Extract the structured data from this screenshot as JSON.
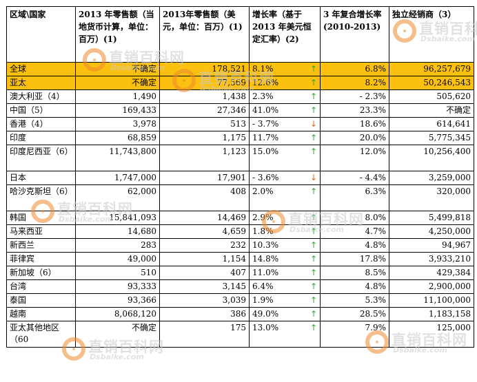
{
  "header": {
    "c1": "区域\\国家",
    "c2": "2013 年零售额（当地货币计算，单位：百万）(1)",
    "c3": "2013年零售额（美元，单位：百万）(1)",
    "c4": "增长率（基于 2013 年美元恒定汇率）(2)",
    "c5": "3 年复合增长率 (2010-2013)",
    "c6": "独立经销商（3）"
  },
  "rows": [
    {
      "name": "全球",
      "local": "不确定",
      "usd": "178,521",
      "rate": "8.1%",
      "trend": "up",
      "cagr": "6.8%",
      "dist": "96,257,679",
      "highlight": true
    },
    {
      "name": "亚太",
      "local": "不确定",
      "usd": "77,569",
      "rate": "12.6%",
      "trend": "up",
      "cagr": "8.2%",
      "dist": "50,246,543",
      "highlight": true
    },
    {
      "name": "澳大利亚（4）",
      "local": "1,490",
      "usd": "1,438",
      "rate": "2.3%",
      "trend": "up",
      "cagr": "- 2.3%",
      "dist": "505,620"
    },
    {
      "name": "中国（5）",
      "local": "169,433",
      "usd": "27,346",
      "rate": "41.0%",
      "trend": "up",
      "cagr": "23.3%",
      "dist": "不确定"
    },
    {
      "name": "香港（4）",
      "local": "3,978",
      "usd": "513",
      "rate": "- 3.7%",
      "trend": "down",
      "cagr": "18.6%",
      "dist": "614,641"
    },
    {
      "name": "印度",
      "local": "68,859",
      "usd": "1,175",
      "rate": "11.7%",
      "trend": "up",
      "cagr": "20.0%",
      "dist": "5,775,345"
    },
    {
      "name": "印度尼西亚（6）",
      "local": "11,743,800",
      "usd": "1,123",
      "rate": "15.0%",
      "trend": "up",
      "cagr": "12.0%",
      "dist": "10,256,400",
      "tall": true
    },
    {
      "name": "日本",
      "local": "1,747,000",
      "usd": "17,901",
      "rate": "- 3.6%",
      "trend": "down",
      "cagr": "- 4.4%",
      "dist": "3,259,000"
    },
    {
      "name": "哈沙克斯坦（6）",
      "local": "62,000",
      "usd": "408",
      "rate": "2.0%",
      "trend": "up",
      "cagr": "6.3%",
      "dist": "320,000",
      "tall": true
    },
    {
      "name": "韩国",
      "local": "15,841,093",
      "usd": "14,469",
      "rate": "2.9%",
      "trend": "up",
      "cagr": "8.0%",
      "dist": "5,499,818"
    },
    {
      "name": "马来西亚",
      "local": "14,680",
      "usd": "4,659",
      "rate": "1.8%",
      "trend": "up",
      "cagr": "4.7%",
      "dist": "4,250,000"
    },
    {
      "name": "新西兰",
      "local": "283",
      "usd": "232",
      "rate": "10.3%",
      "trend": "up",
      "cagr": "4.8%",
      "dist": "94,967"
    },
    {
      "name": "菲律宾",
      "local": "49,000",
      "usd": "1,154",
      "rate": "14.8%",
      "trend": "up",
      "cagr": "17.8%",
      "dist": "3,933,210"
    },
    {
      "name": "新加坡（6）",
      "local": "510",
      "usd": "407",
      "rate": "11.0%",
      "trend": "up",
      "cagr": "8.5%",
      "dist": "429,384"
    },
    {
      "name": "台湾",
      "local": "93,333",
      "usd": "3,145",
      "rate": "6.4%",
      "trend": "up",
      "cagr": "4.8%",
      "dist": "2,900,000"
    },
    {
      "name": "泰国",
      "local": "93,366",
      "usd": "3,039",
      "rate": "1.9%",
      "trend": "up",
      "cagr": "5.3%",
      "dist": "11,100,000"
    },
    {
      "name": "越南",
      "local": "8,068,120",
      "usd": "386",
      "rate": "49.0%",
      "trend": "up",
      "cagr": "28.5%",
      "dist": "1,183,158"
    },
    {
      "name": "亚太其他地区（60",
      "local": "不确定",
      "usd": "175",
      "rate": "13.0%",
      "trend": "up",
      "cagr": "7.9%",
      "dist": "125,000",
      "tall": true
    }
  ],
  "arrows": {
    "up": "↑",
    "down": "↓"
  },
  "colors": {
    "highlight": "#fcc10e",
    "up": "#2ea83a",
    "down": "#e06a17"
  },
  "watermark": {
    "brand": "直销百科网",
    "site": "Dsbaike.com"
  }
}
